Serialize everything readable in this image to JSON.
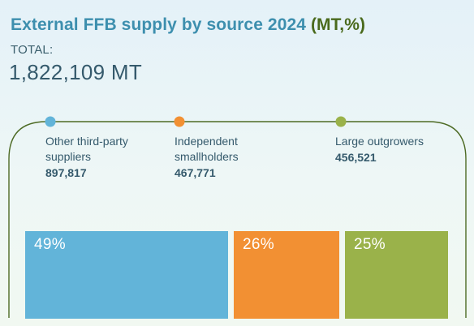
{
  "header": {
    "title": "External FFB supply by source 2024",
    "unit": "(MT,%)",
    "total_label": "TOTAL:",
    "total_value": "1,822,109 MT"
  },
  "colors": {
    "other": "#62b4d9",
    "independent": "#f29033",
    "large": "#9ab24a",
    "frame": "#4e6b25",
    "title": "#3d8fae"
  },
  "chart_data": {
    "type": "bar",
    "categories": [
      "Other third-party suppliers",
      "Independent smallholders",
      "Large outgrowers"
    ],
    "series": [
      {
        "values": [
          897817,
          467771,
          456521
        ]
      }
    ],
    "percent_labels": [
      "49%",
      "26%",
      "25%"
    ],
    "total": 1822109
  },
  "legend": [
    {
      "name": "Other third-party\nsuppliers",
      "value": "897,817",
      "color": "#62b4d9"
    },
    {
      "name": "Independent\nsmallholders",
      "value": "467,771",
      "color": "#f29033"
    },
    {
      "name": "Large outgrowers",
      "value": "456,521",
      "color": "#9ab24a"
    }
  ]
}
